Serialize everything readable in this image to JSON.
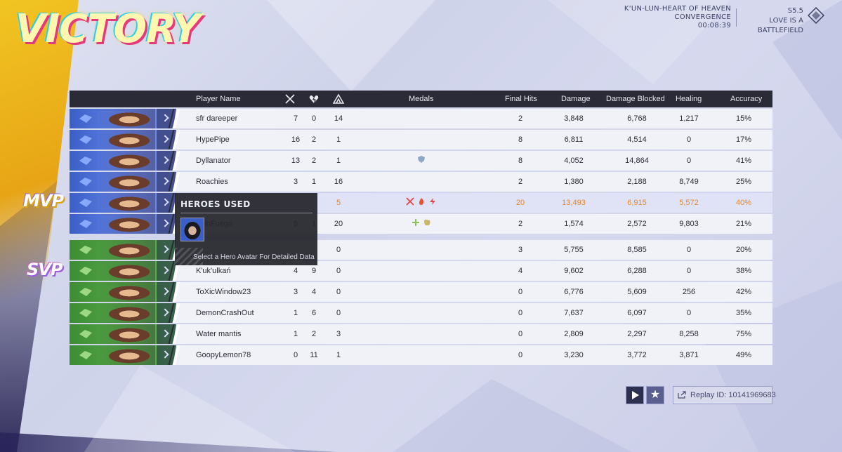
{
  "header": {
    "result": "VICTORY",
    "map": "K'UN-LUN-HEART OF HEAVEN",
    "mode": "CONVERGENCE",
    "duration": "00:08:39",
    "season": "S5.5",
    "season_name": "LOVE IS A BATTLEFIELD"
  },
  "columns": {
    "player_name": "Player Name",
    "kills_icon": "crossed-swords-icon",
    "deaths_icon": "broken-heart-icon",
    "assists_icon": "assist-icon",
    "medals": "Medals",
    "final_hits": "Final Hits",
    "damage": "Damage",
    "damage_blocked": "Damage Blocked",
    "healing": "Healing",
    "accuracy": "Accuracy"
  },
  "tags": {
    "mvp": "MVP",
    "svp": "SVP"
  },
  "team_blue": [
    {
      "name": "sfr dareeper",
      "k": "7",
      "d": "0",
      "a": "14",
      "medals": [],
      "fh": "2",
      "dmg": "3,848",
      "blk": "6,768",
      "heal": "1,217",
      "acc": "15%"
    },
    {
      "name": "HypePipe",
      "k": "16",
      "d": "2",
      "a": "1",
      "medals": [],
      "fh": "8",
      "dmg": "6,811",
      "blk": "4,514",
      "heal": "0",
      "acc": "17%"
    },
    {
      "name": "Dyllanator",
      "k": "13",
      "d": "2",
      "a": "1",
      "medals": [
        "shield-medal-icon"
      ],
      "fh": "8",
      "dmg": "4,052",
      "blk": "14,864",
      "heal": "0",
      "acc": "41%"
    },
    {
      "name": "Roachies",
      "k": "3",
      "d": "1",
      "a": "16",
      "medals": [],
      "fh": "2",
      "dmg": "1,380",
      "blk": "2,188",
      "heal": "8,749",
      "acc": "25%"
    },
    {
      "name": "",
      "k": "",
      "d": "",
      "a": "5",
      "medals": [
        "swords-medal-icon",
        "fire-medal-icon",
        "lightning-medal-icon"
      ],
      "fh": "20",
      "dmg": "13,493",
      "blk": "6,915",
      "heal": "5,572",
      "acc": "40%"
    },
    {
      "name": "...shFuego",
      "k": "6",
      "d": "1",
      "a": "20",
      "medals": [
        "plus-medal-icon",
        "fist-medal-icon"
      ],
      "fh": "2",
      "dmg": "1,574",
      "blk": "2,572",
      "heal": "9,803",
      "acc": "21%"
    }
  ],
  "team_green": [
    {
      "name": "",
      "k": "",
      "d": "",
      "a": "0",
      "medals": [],
      "fh": "3",
      "dmg": "5,755",
      "blk": "8,585",
      "heal": "0",
      "acc": "20%"
    },
    {
      "name": "K'uk'ulkań",
      "k": "4",
      "d": "9",
      "a": "0",
      "medals": [],
      "fh": "4",
      "dmg": "9,602",
      "blk": "6,288",
      "heal": "0",
      "acc": "38%"
    },
    {
      "name": "ToXicWindow23",
      "k": "3",
      "d": "4",
      "a": "0",
      "medals": [],
      "fh": "0",
      "dmg": "6,776",
      "blk": "5,609",
      "heal": "256",
      "acc": "42%"
    },
    {
      "name": "DemonCrashOut",
      "k": "1",
      "d": "6",
      "a": "0",
      "medals": [],
      "fh": "0",
      "dmg": "7,637",
      "blk": "6,097",
      "heal": "0",
      "acc": "35%"
    },
    {
      "name": "Water mantis",
      "k": "1",
      "d": "2",
      "a": "3",
      "medals": [],
      "fh": "0",
      "dmg": "2,809",
      "blk": "2,297",
      "heal": "8,258",
      "acc": "75%"
    },
    {
      "name": "GoopyLemon78",
      "k": "0",
      "d": "11",
      "a": "1",
      "medals": [],
      "fh": "0",
      "dmg": "3,230",
      "blk": "3,772",
      "heal": "3,871",
      "acc": "49%"
    }
  ],
  "tooltip": {
    "title": "HEROES USED",
    "hint": "Select a Hero Avatar For Detailed Data"
  },
  "footer": {
    "replay_label": "Replay ID: 10141969683"
  },
  "colors": {
    "blue_team": "#3a5fc6",
    "green_team": "#3d8d35",
    "mvp_highlight": "#e6862b",
    "header_bg": "#2a2b36"
  }
}
